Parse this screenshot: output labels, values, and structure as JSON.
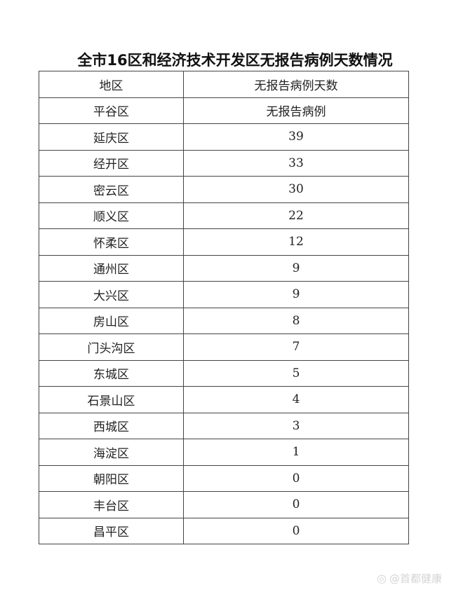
{
  "title": "全市16区和经济技术开发区无报告病例天数情况",
  "table": {
    "headers": [
      "地区",
      "无报告病例天数"
    ],
    "rows": [
      [
        "平谷区",
        "无报告病例"
      ],
      [
        "延庆区",
        "39"
      ],
      [
        "经开区",
        "33"
      ],
      [
        "密云区",
        "30"
      ],
      [
        "顺义区",
        "22"
      ],
      [
        "怀柔区",
        "12"
      ],
      [
        "通州区",
        "9"
      ],
      [
        "大兴区",
        "9"
      ],
      [
        "房山区",
        "8"
      ],
      [
        "门头沟区",
        "7"
      ],
      [
        "东城区",
        "5"
      ],
      [
        "石景山区",
        "4"
      ],
      [
        "西城区",
        "3"
      ],
      [
        "海淀区",
        "1"
      ],
      [
        "朝阳区",
        "0"
      ],
      [
        "丰台区",
        "0"
      ],
      [
        "昌平区",
        "0"
      ]
    ]
  },
  "watermark": "@首都健康"
}
